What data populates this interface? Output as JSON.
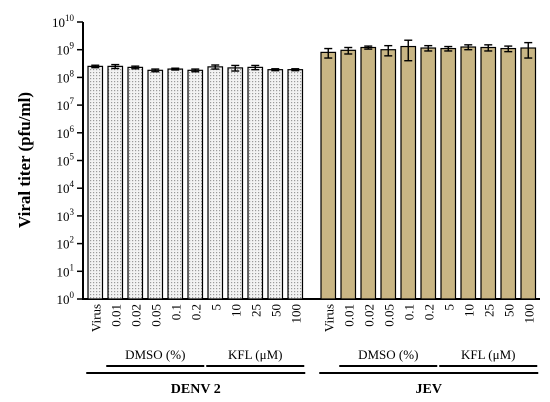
{
  "chart_data": {
    "type": "bar",
    "ylabel": "Viral titer (pfu/ml)",
    "yscale": "log",
    "ylim": [
      1,
      10000000000
    ],
    "ytick_exponents": [
      0,
      1,
      2,
      3,
      4,
      5,
      6,
      7,
      8,
      9,
      10
    ],
    "ytick_base": "10",
    "categories": [
      "Virus",
      "0.01",
      "0.02",
      "0.05",
      "0.1",
      "0.2",
      "5",
      "10",
      "25",
      "50",
      "100"
    ],
    "groups": [
      {
        "label": "DMSO (%)",
        "first": 1,
        "last": 5
      },
      {
        "label": "KFL (μM)",
        "first": 6,
        "last": 10
      }
    ],
    "series": [
      {
        "name": "DENV 2",
        "color": "#e4e4e4",
        "pattern": "dotted",
        "values": [
          250000000,
          250000000,
          230000000,
          180000000,
          200000000,
          180000000,
          240000000,
          220000000,
          230000000,
          190000000,
          190000000
        ],
        "errors": [
          25000000,
          40000000,
          25000000,
          20000000,
          15000000,
          20000000,
          40000000,
          50000000,
          40000000,
          15000000,
          15000000
        ]
      },
      {
        "name": "JEV",
        "color": "#c9b684",
        "pattern": "solid",
        "values": [
          800000000,
          950000000,
          1200000000,
          1000000000,
          1300000000,
          1150000000,
          1100000000,
          1250000000,
          1200000000,
          1100000000,
          1150000000
        ],
        "errors": [
          300000000,
          250000000,
          150000000,
          400000000,
          900000000,
          250000000,
          200000000,
          250000000,
          300000000,
          250000000,
          650000000
        ]
      }
    ]
  }
}
